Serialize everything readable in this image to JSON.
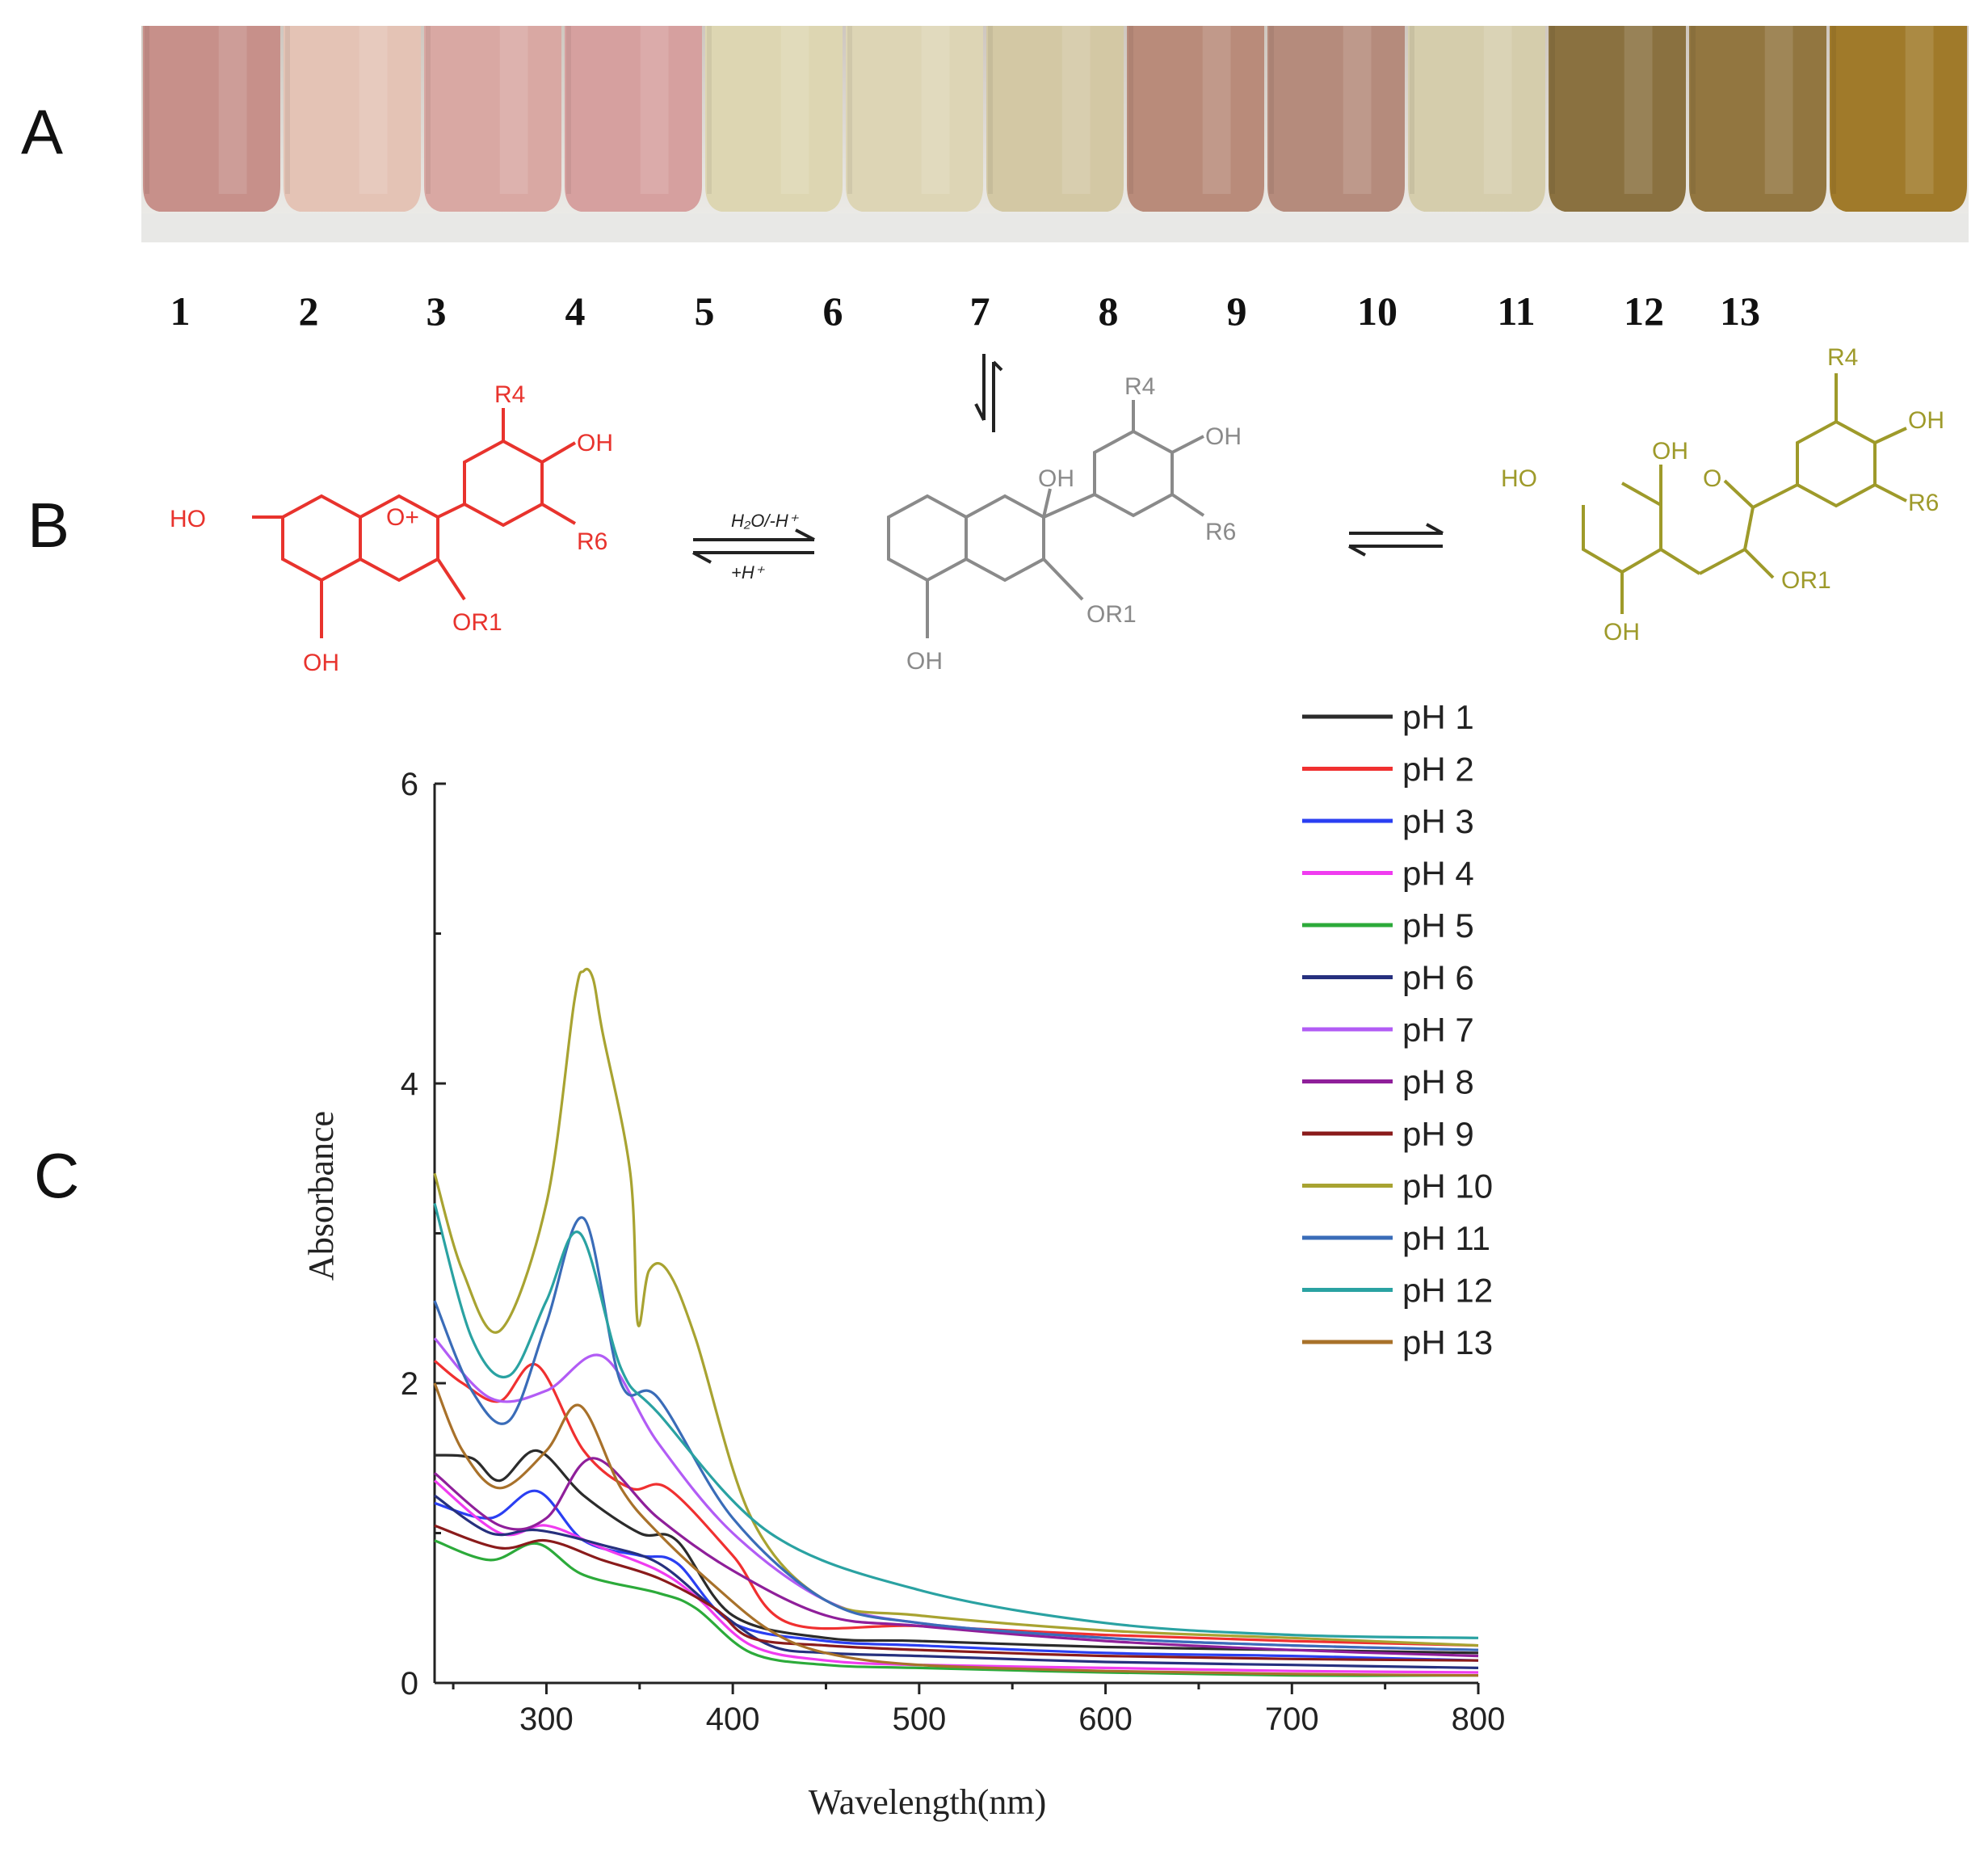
{
  "panels": {
    "a": "A",
    "b": "B",
    "c": "C"
  },
  "tubes": {
    "labels": [
      "1",
      "2",
      "3",
      "4",
      "5",
      "6",
      "7",
      "8",
      "9",
      "10",
      "11",
      "12",
      "13"
    ],
    "colors": [
      "#c7908a",
      "#e4c3b5",
      "#d9a8a3",
      "#d6a09f",
      "#ddd6b2",
      "#ddd5b5",
      "#d3c8a4",
      "#b98b7a",
      "#b58b7c",
      "#d5cdac",
      "#8a7140",
      "#927640",
      "#a07a2a"
    ]
  },
  "chemistry": {
    "flavylium": {
      "color": "#e8332d",
      "labels": [
        "R4",
        "OH",
        "HO",
        "O+",
        "R6",
        "OR1",
        "OH"
      ]
    },
    "carbinol": {
      "color": "#8a8a8a",
      "labels": [
        "R4",
        "OH",
        "OH",
        "R6",
        "OR1",
        "OH"
      ]
    },
    "chalcone": {
      "color": "#9e9a2a",
      "labels": [
        "R4",
        "OH",
        "OH",
        "HO",
        "O",
        "R6",
        "OR1",
        "OH"
      ]
    },
    "arrow_top": "H₂O/-H⁺",
    "arrow_bottom": "+H⁺"
  },
  "chart_data": {
    "type": "line",
    "xlabel": "Wavelength(nm)",
    "ylabel": "Absorbance",
    "xlim": [
      240,
      800
    ],
    "ylim": [
      0,
      6
    ],
    "xticks": [
      300,
      400,
      500,
      600,
      700,
      800
    ],
    "yticks": [
      0,
      2,
      4,
      6
    ],
    "legend_position": "top-right",
    "series": [
      {
        "name": "pH 1",
        "color": "#2b2b2b",
        "x": [
          240,
          260,
          275,
          295,
          320,
          350,
          370,
          400,
          450,
          500,
          600,
          700,
          800
        ],
        "values": [
          1.52,
          1.5,
          1.35,
          1.55,
          1.25,
          1.0,
          0.95,
          0.45,
          0.3,
          0.28,
          0.24,
          0.22,
          0.2
        ]
      },
      {
        "name": "pH 2",
        "color": "#f03030",
        "x": [
          240,
          255,
          275,
          295,
          320,
          345,
          365,
          400,
          430,
          500,
          600,
          700,
          800
        ],
        "values": [
          2.15,
          2.0,
          1.88,
          2.12,
          1.55,
          1.3,
          1.3,
          0.85,
          0.4,
          0.38,
          0.32,
          0.28,
          0.25
        ]
      },
      {
        "name": "pH 3",
        "color": "#2a3ff2",
        "x": [
          240,
          270,
          295,
          320,
          350,
          370,
          400,
          450,
          500,
          600,
          700,
          800
        ],
        "values": [
          1.2,
          1.1,
          1.28,
          0.95,
          0.85,
          0.8,
          0.4,
          0.28,
          0.25,
          0.2,
          0.18,
          0.15
        ]
      },
      {
        "name": "pH 4",
        "color": "#f03cf0",
        "x": [
          240,
          275,
          300,
          330,
          360,
          380,
          410,
          450,
          500,
          600,
          700,
          800
        ],
        "values": [
          1.35,
          1.0,
          1.05,
          0.9,
          0.75,
          0.58,
          0.25,
          0.15,
          0.12,
          0.1,
          0.08,
          0.07
        ]
      },
      {
        "name": "pH 5",
        "color": "#2caa3a",
        "x": [
          240,
          270,
          295,
          320,
          360,
          380,
          410,
          450,
          500,
          600,
          700,
          800
        ],
        "values": [
          0.95,
          0.82,
          0.93,
          0.72,
          0.6,
          0.5,
          0.2,
          0.12,
          0.1,
          0.07,
          0.05,
          0.05
        ]
      },
      {
        "name": "pH 6",
        "color": "#26307e",
        "x": [
          240,
          270,
          295,
          330,
          360,
          390,
          420,
          450,
          500,
          600,
          700,
          800
        ],
        "values": [
          1.25,
          1.0,
          1.02,
          0.92,
          0.8,
          0.5,
          0.25,
          0.2,
          0.18,
          0.14,
          0.12,
          0.1
        ]
      },
      {
        "name": "pH 7",
        "color": "#b25cf5",
        "x": [
          240,
          270,
          300,
          330,
          360,
          400,
          450,
          500,
          600,
          700,
          800
        ],
        "values": [
          2.3,
          1.9,
          1.95,
          2.18,
          1.6,
          1.0,
          0.55,
          0.4,
          0.3,
          0.25,
          0.22
        ]
      },
      {
        "name": "pH 8",
        "color": "#8f1f9a",
        "x": [
          240,
          275,
          300,
          325,
          360,
          400,
          450,
          500,
          600,
          700,
          800
        ],
        "values": [
          1.4,
          1.05,
          1.1,
          1.5,
          1.1,
          0.75,
          0.45,
          0.38,
          0.28,
          0.22,
          0.18
        ]
      },
      {
        "name": "pH 9",
        "color": "#8a1b1b",
        "x": [
          240,
          275,
          300,
          330,
          360,
          390,
          410,
          450,
          500,
          600,
          700,
          800
        ],
        "values": [
          1.05,
          0.9,
          0.95,
          0.82,
          0.7,
          0.5,
          0.3,
          0.25,
          0.22,
          0.18,
          0.16,
          0.15
        ]
      },
      {
        "name": "pH 10",
        "color": "#a8a331",
        "x": [
          240,
          255,
          275,
          300,
          315,
          320,
          325,
          330,
          345,
          349,
          355,
          365,
          380,
          410,
          450,
          500,
          600,
          700,
          800
        ],
        "values": [
          3.4,
          2.75,
          2.35,
          3.2,
          4.55,
          4.75,
          4.7,
          4.35,
          3.4,
          2.4,
          2.75,
          2.75,
          2.3,
          1.1,
          0.55,
          0.45,
          0.35,
          0.3,
          0.25
        ]
      },
      {
        "name": "pH 11",
        "color": "#3a6cb8",
        "x": [
          240,
          260,
          280,
          300,
          320,
          340,
          360,
          400,
          450,
          500,
          600,
          700,
          800
        ],
        "values": [
          2.55,
          1.95,
          1.75,
          2.4,
          3.1,
          2.0,
          1.9,
          1.1,
          0.55,
          0.4,
          0.3,
          0.25,
          0.22
        ]
      },
      {
        "name": "pH 12",
        "color": "#2aa2a2",
        "x": [
          240,
          260,
          280,
          300,
          318,
          340,
          360,
          420,
          500,
          600,
          700,
          800
        ],
        "values": [
          3.2,
          2.3,
          2.05,
          2.55,
          3.0,
          2.1,
          1.8,
          1.0,
          0.62,
          0.4,
          0.32,
          0.3
        ]
      },
      {
        "name": "pH 13",
        "color": "#a8712a",
        "x": [
          240,
          255,
          275,
          300,
          318,
          340,
          360,
          390,
          420,
          450,
          500,
          600,
          700,
          800
        ],
        "values": [
          2.0,
          1.55,
          1.3,
          1.55,
          1.85,
          1.3,
          1.0,
          0.65,
          0.35,
          0.2,
          0.12,
          0.08,
          0.06,
          0.05
        ]
      }
    ]
  }
}
